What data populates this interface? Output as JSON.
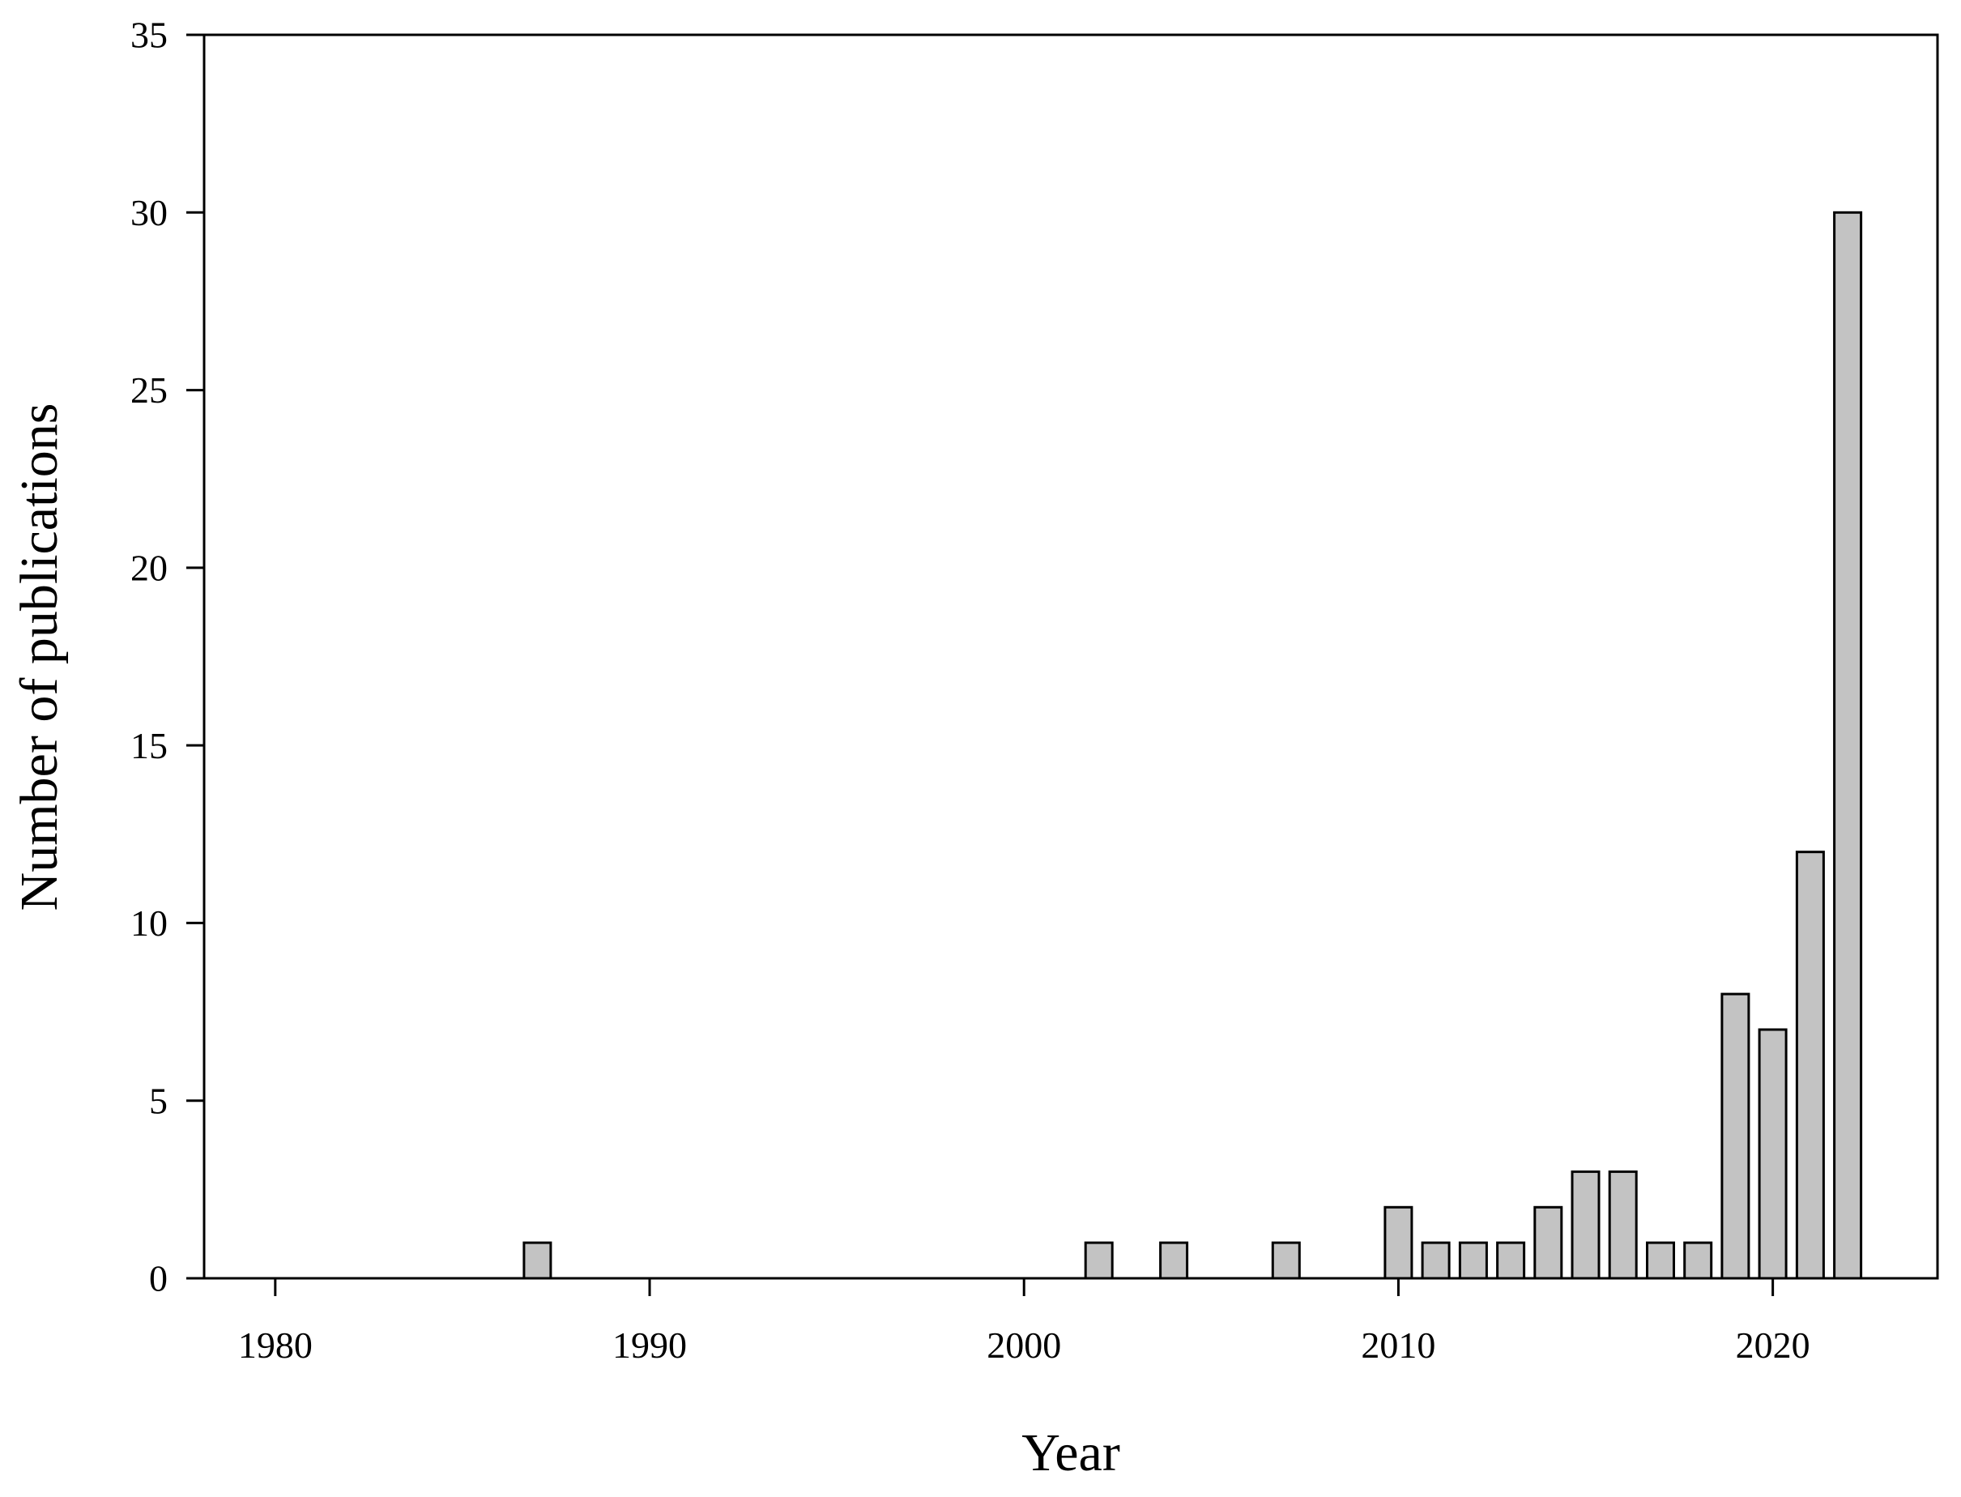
{
  "figure": {
    "background": "#ffffff"
  },
  "chart_data": {
    "type": "bar",
    "title": "",
    "xlabel": "Year",
    "ylabel": "Number of publications",
    "categories": [
      1987,
      2002,
      2004,
      2007,
      2010,
      2011,
      2012,
      2013,
      2014,
      2015,
      2016,
      2017,
      2018,
      2019,
      2020,
      2021,
      2022
    ],
    "values": [
      1,
      1,
      1,
      1,
      2,
      1,
      1,
      1,
      2,
      3,
      3,
      1,
      1,
      8,
      7,
      12,
      30
    ],
    "xlim": [
      1978.1,
      2024.4
    ],
    "ylim": [
      0,
      35
    ],
    "xticks": [
      1980,
      1990,
      2000,
      2010,
      2020
    ],
    "yticks": [
      0,
      5,
      10,
      15,
      20,
      25,
      30,
      35
    ],
    "grid": false,
    "legend": null,
    "frame": "box",
    "bar_fill": "#c3c3c3",
    "bar_edge": "#000000",
    "axis_color": "#000000"
  }
}
